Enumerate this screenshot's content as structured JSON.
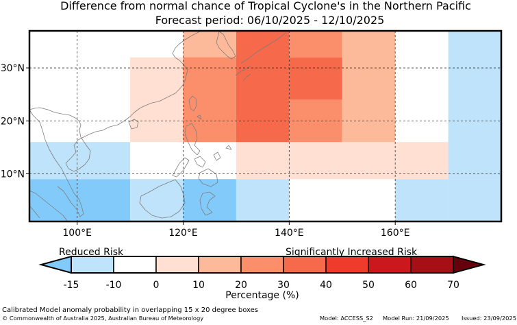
{
  "title": {
    "line1": "Difference from normal chance of Tropical Cyclone's in the Northern Pacific",
    "line2": "Forecast period: 06/10/2025 - 12/10/2025"
  },
  "map": {
    "lon_range": [
      91,
      180
    ],
    "lat_range": [
      1,
      37
    ],
    "x_ticks": [
      {
        "lon": 100,
        "label": "100°E"
      },
      {
        "lon": 120,
        "label": "120°E"
      },
      {
        "lon": 140,
        "label": "140°E"
      },
      {
        "lon": 160,
        "label": "160°E"
      }
    ],
    "y_ticks": [
      {
        "lat": 30,
        "label": "30°N"
      },
      {
        "lat": 20,
        "label": "20°N"
      },
      {
        "lat": 10,
        "label": "10°N"
      }
    ],
    "cells": [
      {
        "lon0": 91,
        "lon1": 110,
        "lat0": 1,
        "lat1": 9,
        "pct": -20
      },
      {
        "lon0": 110,
        "lon1": 120,
        "lat0": 1,
        "lat1": 9,
        "pct": -12
      },
      {
        "lon0": 120,
        "lon1": 130,
        "lat0": 1,
        "lat1": 9,
        "pct": -20
      },
      {
        "lon0": 130,
        "lon1": 140,
        "lat0": 1,
        "lat1": 9,
        "pct": -12
      },
      {
        "lon0": 160,
        "lon1": 170,
        "lat0": 1,
        "lat1": 9,
        "pct": -12
      },
      {
        "lon0": 170,
        "lon1": 180,
        "lat0": 1,
        "lat1": 9,
        "pct": -12
      },
      {
        "lon0": 91,
        "lon1": 110,
        "lat0": 9,
        "lat1": 16,
        "pct": -12
      },
      {
        "lon0": 130,
        "lon1": 170,
        "lat0": 9,
        "lat1": 16,
        "pct": 5
      },
      {
        "lon0": 170,
        "lon1": 180,
        "lat0": 9,
        "lat1": 37,
        "pct": -12
      },
      {
        "lon0": 110,
        "lon1": 120,
        "lat0": 16,
        "lat1": 32,
        "pct": 5
      },
      {
        "lon0": 120,
        "lon1": 130,
        "lat0": 16,
        "lat1": 37,
        "pct": 25
      },
      {
        "lon0": 130,
        "lon1": 140,
        "lat0": 16,
        "lat1": 37,
        "pct": 35
      },
      {
        "lon0": 140,
        "lon1": 150,
        "lat0": 16,
        "lat1": 24,
        "pct": 25
      },
      {
        "lon0": 140,
        "lon1": 150,
        "lat0": 24,
        "lat1": 32,
        "pct": 35
      },
      {
        "lon0": 140,
        "lon1": 150,
        "lat0": 32,
        "lat1": 37,
        "pct": 25
      },
      {
        "lon0": 150,
        "lon1": 160,
        "lat0": 16,
        "lat1": 37,
        "pct": 15
      },
      {
        "lon0": 120,
        "lon1": 130,
        "lat0": 32,
        "lat1": 37,
        "pct": 15
      }
    ]
  },
  "colorbar": {
    "left_label": "Reduced Risk",
    "right_label": "Significantly Increased Risk",
    "axis_label": "Percentage (%)",
    "ticks": [
      "-15",
      "-10",
      "0",
      "10",
      "20",
      "30",
      "40",
      "50",
      "60",
      "70"
    ],
    "colors": [
      "#BEE3FA",
      "#FFFFFF",
      "#FFE0D2",
      "#FDBA9A",
      "#FB8F6C",
      "#F6694A",
      "#EF3B2C",
      "#CB181D",
      "#A50F15"
    ],
    "under_color": "#82CAFA",
    "over_color": "#67000D"
  },
  "footer": {
    "description": "Calibrated Model anomaly probability in overlapping 15 x 20 degree boxes",
    "copyright": "© Commonwealth of Australia 2025, Australian Bureau of Meteorology",
    "model": "Model: ACCESS_S2",
    "model_run": "Model Run: 21/09/2025",
    "issued": "Issued: 23/09/2025"
  }
}
